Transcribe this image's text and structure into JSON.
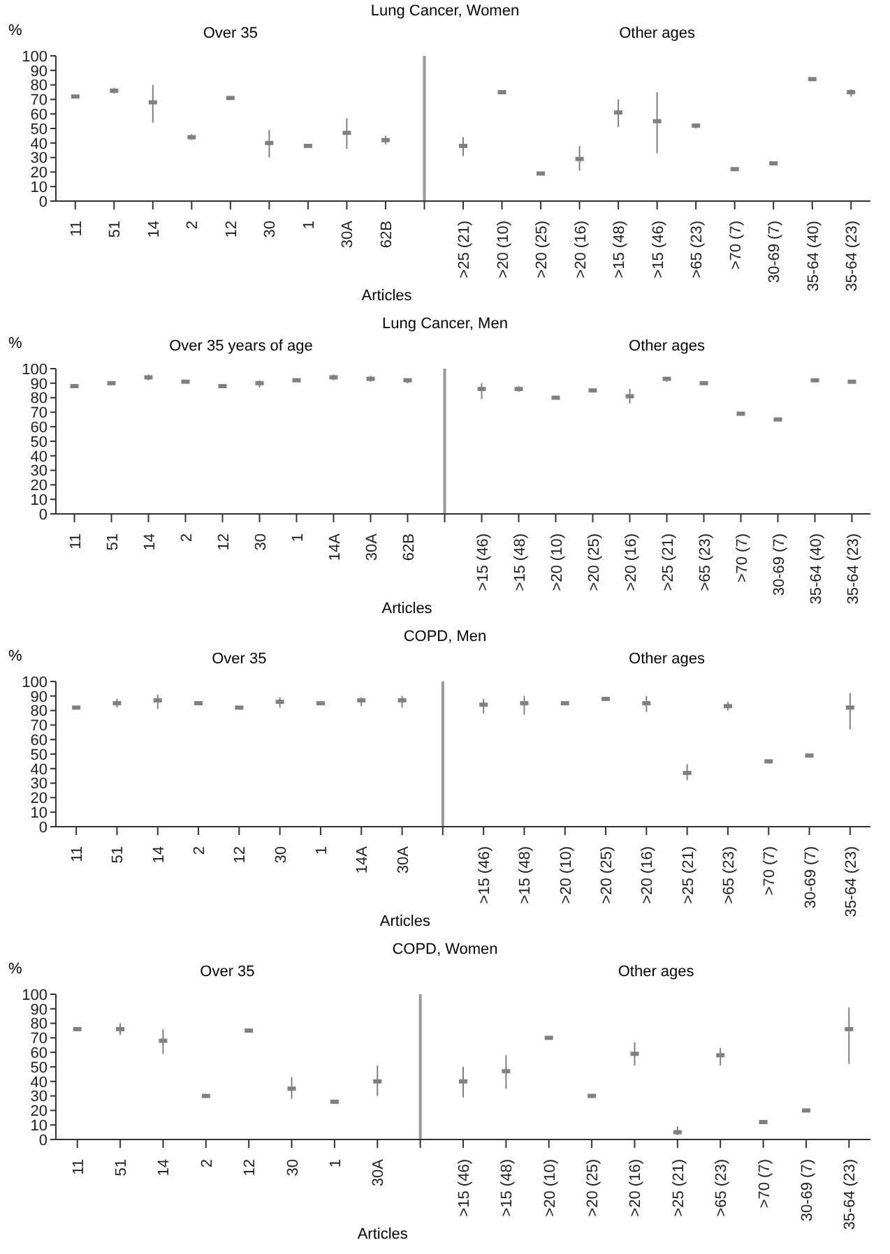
{
  "chart_data": [
    {
      "type": "scatter",
      "title": "Lung Cancer, Women",
      "xlabel": "Articles",
      "ylabel": "%",
      "annotations": [
        "Over 35",
        "Other ages"
      ],
      "marker": "square",
      "color": "#808080",
      "ylim": [
        0,
        100
      ],
      "yticks": [
        0,
        10,
        20,
        30,
        40,
        50,
        60,
        70,
        80,
        90,
        100
      ],
      "categories": [
        "11",
        "51",
        "14",
        "2",
        "12",
        "30",
        "1",
        "30A",
        "62B",
        null,
        ">25 (21)",
        ">20 (10)",
        ">20 (25)",
        ">20 (16)",
        ">15 (48)",
        ">15 (46)",
        ">65 (23)",
        ">70 (7)",
        "30-69 (7)",
        "35-64 (40)",
        "35-64 (23)"
      ],
      "values": [
        72,
        76,
        68,
        44,
        71,
        40,
        38,
        47,
        42,
        null,
        38,
        75,
        19,
        29,
        61,
        55,
        52,
        22,
        26,
        84,
        75
      ],
      "errors": [
        null,
        [
          74,
          78
        ],
        [
          54,
          80
        ],
        [
          42,
          46
        ],
        null,
        [
          30,
          49
        ],
        null,
        [
          36,
          57
        ],
        [
          39,
          45
        ],
        null,
        [
          31,
          44
        ],
        null,
        null,
        [
          21,
          38
        ],
        [
          51,
          70
        ],
        [
          33,
          75
        ],
        [
          50,
          53
        ],
        null,
        null,
        null,
        [
          72,
          77
        ]
      ]
    },
    {
      "type": "scatter",
      "title": "Lung Cancer, Men",
      "xlabel": "Articles",
      "ylabel": "%",
      "annotations": [
        "Over 35 years of age",
        "Other ages"
      ],
      "marker": "square",
      "color": "#808080",
      "ylim": [
        0,
        100
      ],
      "yticks": [
        0,
        10,
        20,
        30,
        40,
        50,
        60,
        70,
        80,
        90,
        100
      ],
      "categories": [
        "11",
        "51",
        "14",
        "2",
        "12",
        "30",
        "1",
        "14A",
        "30A",
        "62B",
        null,
        ">15 (46)",
        ">15 (48)",
        ">20 (10)",
        ">20 (25)",
        ">20 (16)",
        ">25 (21)",
        ">65 (23)",
        ">70 (7)",
        "30-69 (7)",
        "35-64 (40)",
        "35-64 (23)"
      ],
      "values": [
        88,
        90,
        94,
        91,
        88,
        90,
        92,
        94,
        93,
        92,
        null,
        86,
        86,
        80,
        85,
        81,
        93,
        90,
        69,
        65,
        92,
        91
      ],
      "errors": [
        null,
        null,
        [
          92,
          96
        ],
        null,
        null,
        [
          87,
          92
        ],
        null,
        [
          92,
          96
        ],
        [
          91,
          95
        ],
        [
          90,
          93
        ],
        null,
        [
          79,
          90
        ],
        [
          84,
          88
        ],
        null,
        null,
        [
          76,
          86
        ],
        [
          91,
          94
        ],
        null,
        null,
        null,
        null,
        null
      ]
    },
    {
      "type": "scatter",
      "title": "COPD, Men",
      "xlabel": "Articles",
      "ylabel": "%",
      "annotations": [
        "Over 35",
        "Other ages"
      ],
      "marker": "square",
      "color": "#808080",
      "ylim": [
        0,
        100
      ],
      "yticks": [
        0,
        10,
        20,
        30,
        40,
        50,
        60,
        70,
        80,
        90,
        100
      ],
      "categories": [
        "11",
        "51",
        "14",
        "2",
        "12",
        "30",
        "1",
        "14A",
        "30A",
        null,
        ">15 (46)",
        ">15 (48)",
        ">20 (10)",
        ">20 (25)",
        ">20 (16)",
        ">25 (21)",
        ">65 (23)",
        ">70 (7)",
        "30-69 (7)",
        "35-64 (23)"
      ],
      "values": [
        82,
        85,
        87,
        85,
        82,
        86,
        85,
        87,
        87,
        null,
        84,
        85,
        85,
        88,
        85,
        37,
        83,
        45,
        49,
        82
      ],
      "errors": [
        null,
        [
          82,
          88
        ],
        [
          81,
          91
        ],
        null,
        null,
        [
          82,
          89
        ],
        null,
        [
          83,
          89
        ],
        [
          82,
          90
        ],
        null,
        [
          78,
          88
        ],
        [
          77,
          90
        ],
        null,
        [
          87,
          89
        ],
        [
          79,
          90
        ],
        [
          32,
          43
        ],
        [
          80,
          86
        ],
        null,
        null,
        [
          67,
          92
        ]
      ]
    },
    {
      "type": "scatter",
      "title": "COPD, Women",
      "xlabel": "Articles",
      "ylabel": "%",
      "annotations": [
        "Over 35",
        "Other ages"
      ],
      "marker": "square",
      "color": "#808080",
      "ylim": [
        0,
        100
      ],
      "yticks": [
        0,
        10,
        20,
        30,
        40,
        50,
        60,
        70,
        80,
        90,
        100
      ],
      "categories": [
        "11",
        "51",
        "14",
        "2",
        "12",
        "30",
        "1",
        "30A",
        null,
        ">15 (46)",
        ">15 (48)",
        ">20 (10)",
        ">20 (25)",
        ">20 (16)",
        ">25 (21)",
        ">65 (23)",
        ">70 (7)",
        "30-69 (7)",
        "35-64 (23)"
      ],
      "values": [
        76,
        76,
        68,
        30,
        75,
        35,
        26,
        40,
        null,
        40,
        47,
        70,
        30,
        59,
        5,
        58,
        12,
        20,
        76
      ],
      "errors": [
        null,
        [
          72,
          80
        ],
        [
          59,
          76
        ],
        [
          29,
          31
        ],
        null,
        [
          28,
          43
        ],
        null,
        [
          30,
          51
        ],
        null,
        [
          29,
          50
        ],
        [
          35,
          58
        ],
        null,
        null,
        [
          51,
          67
        ],
        [
          3,
          9
        ],
        [
          51,
          63
        ],
        null,
        null,
        [
          52,
          91
        ]
      ]
    }
  ]
}
